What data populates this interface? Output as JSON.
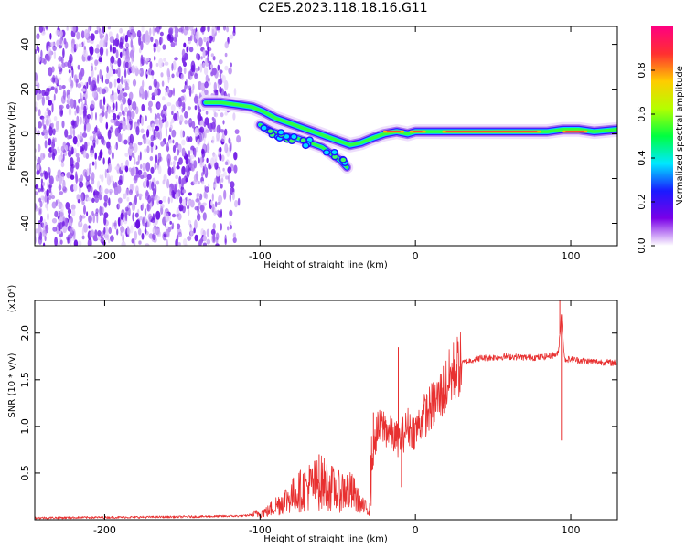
{
  "title": "C2E5.2023.118.18.16.G11",
  "chart_data": [
    {
      "type": "heatmap",
      "xlabel": "Height of straight line (km)",
      "ylabel": "Frequency (Hz)",
      "xlim": [
        -245,
        130
      ],
      "ylim": [
        -50,
        48
      ],
      "x_ticks": [
        -200,
        -100,
        0,
        100
      ],
      "y_ticks": [
        -40,
        -20,
        0,
        20,
        40
      ],
      "x_tick_labels": [
        "-200",
        "-100",
        "0",
        "100"
      ],
      "y_tick_labels": [
        "-40",
        "-20",
        "0",
        "20",
        "40"
      ],
      "colorbar": {
        "label": "Normalized spectral amplitude",
        "range": [
          0,
          1
        ],
        "ticks": [
          0.0,
          0.2,
          0.4,
          0.6,
          0.8
        ],
        "tick_labels": [
          "0.0",
          "0.2",
          "0.4",
          "0.6",
          "0.8"
        ],
        "colors": [
          "#ffffff",
          "#7a00e8",
          "#1a1aff",
          "#00e8ff",
          "#00ff40",
          "#b4ff00",
          "#ffcc00",
          "#ff3030",
          "#ff0080"
        ]
      },
      "noise_region_x": [
        -245,
        -112
      ],
      "signal_track": {
        "x": [
          -135,
          -125,
          -115,
          -105,
          -98,
          -90,
          -82,
          -74,
          -66,
          -58,
          -50,
          -42,
          -35,
          -28,
          -20,
          -12,
          -5,
          0,
          10,
          25,
          40,
          55,
          70,
          85,
          95,
          105,
          115,
          130
        ],
        "y": [
          14,
          14,
          13,
          12,
          10,
          7,
          5,
          3,
          1,
          -1,
          -3,
          -5,
          -4,
          -2,
          0,
          1,
          0,
          1,
          1,
          1,
          1,
          1,
          1,
          1,
          2,
          2,
          1,
          2
        ]
      },
      "lower_branch": {
        "x": [
          -100,
          -92,
          -84,
          -76,
          -68,
          -60,
          -54,
          -48,
          -44
        ],
        "y": [
          4,
          1,
          -1,
          -2,
          -4,
          -6,
          -9,
          -12,
          -15
        ]
      },
      "grid": false
    },
    {
      "type": "line",
      "xlabel": "Height of straight line (km)",
      "ylabel": "SNR (10 * v/v)",
      "multiplier": "(x10⁴)",
      "xlim": [
        -245,
        130
      ],
      "ylim": [
        0,
        23500
      ],
      "x_ticks": [
        -200,
        -100,
        0,
        100
      ],
      "y_ticks": [
        5000,
        10000,
        15000,
        20000
      ],
      "x_tick_labels": [
        "-200",
        "-100",
        "0",
        "100"
      ],
      "y_tick_labels": [
        "0.5",
        "1.0",
        "1.5",
        "2.0"
      ],
      "series": [
        {
          "color": "#e83030",
          "x": [
            -245,
            -200,
            -150,
            -110,
            -100,
            -95,
            -90,
            -80,
            -70,
            -60,
            -55,
            -50,
            -45,
            -40,
            -35,
            -30,
            -28,
            -25,
            -20,
            -15,
            -10,
            -5,
            0,
            5,
            10,
            15,
            20,
            25,
            30,
            40,
            50,
            60,
            70,
            80,
            88,
            92,
            94,
            96,
            100,
            110,
            120,
            130
          ],
          "y": [
            200,
            250,
            300,
            400,
            700,
            900,
            1500,
            2500,
            3500,
            4000,
            3500,
            3000,
            3200,
            2800,
            1500,
            1000,
            6000,
            9500,
            10000,
            9000,
            8500,
            10000,
            9500,
            11000,
            12000,
            13000,
            14500,
            16000,
            16800,
            17300,
            17400,
            17500,
            17400,
            17400,
            17600,
            17800,
            22000,
            17200,
            17200,
            17000,
            16900,
            16800
          ]
        }
      ],
      "spikes": [
        {
          "x": -62,
          "y": 7000
        },
        {
          "x": -30,
          "y": 500
        },
        {
          "x": -27,
          "y": 11500
        },
        {
          "x": -11,
          "y": 18500
        },
        {
          "x": -9,
          "y": 3500
        },
        {
          "x": 93,
          "y": 23500
        },
        {
          "x": 94,
          "y": 8500
        }
      ],
      "grid": false
    }
  ]
}
